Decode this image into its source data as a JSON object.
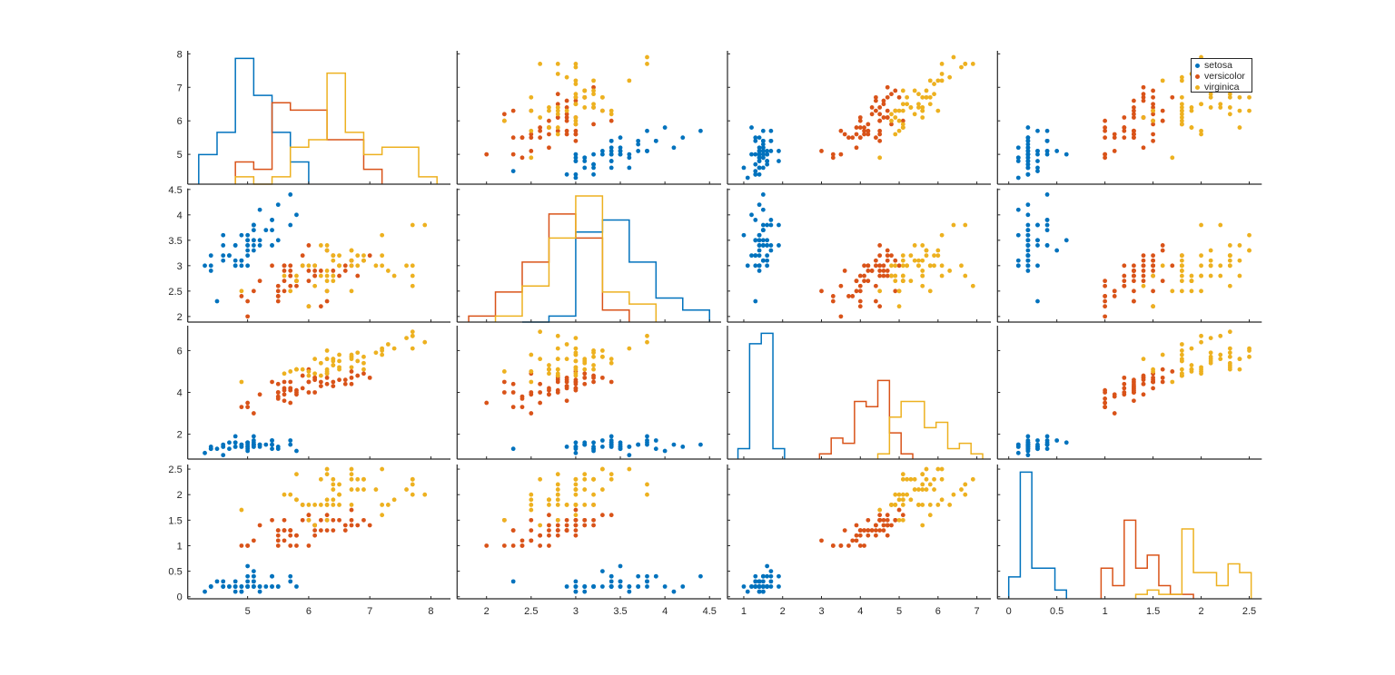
{
  "chart_data": {
    "type": "scatter",
    "layout": "scatter-plot-matrix 4x4 with per-group histograms on diagonal",
    "grid": false,
    "legend": {
      "placement": "top-right of last top-row panel",
      "entries": [
        {
          "name": "setosa",
          "color": "#0072BD"
        },
        {
          "name": "versicolor",
          "color": "#D95319"
        },
        {
          "name": "virginica",
          "color": "#EDB120"
        }
      ]
    },
    "variables": [
      {
        "lim_x": [
          4.02,
          8.32
        ],
        "lim_y": [
          4.11,
          8.09
        ],
        "ticks": [
          5,
          6,
          7,
          8
        ],
        "tick_labels": [
          "5",
          "6",
          "7",
          "8"
        ]
      },
      {
        "lim_x": [
          1.67,
          4.63
        ],
        "lim_y": [
          1.89,
          4.52
        ],
        "ticks": [
          2,
          2.5,
          3,
          3.5,
          4,
          4.5
        ],
        "tick_labels": [
          "2",
          "2.5",
          "3",
          "3.5",
          "4",
          "4.5"
        ]
      },
      {
        "lim_x": [
          0.58,
          7.36
        ],
        "lim_y": [
          0.81,
          7.19
        ],
        "ticks_x": [
          1,
          2,
          3,
          4,
          5,
          6,
          7
        ],
        "tick_labels_x": [
          "1",
          "2",
          "3",
          "4",
          "5",
          "6",
          "7"
        ],
        "ticks": [
          2,
          4,
          6
        ],
        "tick_labels": [
          "2",
          "4",
          "6"
        ]
      },
      {
        "lim_x": [
          -0.117,
          2.63
        ],
        "lim_y": [
          -0.04,
          2.59
        ],
        "ticks": [
          0,
          0.5,
          1,
          1.5,
          2,
          2.5
        ],
        "tick_labels": [
          "0",
          "0.5",
          "1",
          "1.5",
          "2",
          "2.5"
        ]
      }
    ],
    "groups": [
      {
        "name": "setosa",
        "points": [
          [
            5.1,
            3.5,
            1.4,
            0.2
          ],
          [
            4.9,
            3.0,
            1.4,
            0.2
          ],
          [
            4.7,
            3.2,
            1.3,
            0.2
          ],
          [
            4.6,
            3.1,
            1.5,
            0.2
          ],
          [
            5.0,
            3.6,
            1.4,
            0.2
          ],
          [
            5.4,
            3.9,
            1.7,
            0.4
          ],
          [
            4.6,
            3.4,
            1.4,
            0.3
          ],
          [
            5.0,
            3.4,
            1.5,
            0.2
          ],
          [
            4.4,
            2.9,
            1.4,
            0.2
          ],
          [
            4.9,
            3.1,
            1.5,
            0.1
          ],
          [
            5.4,
            3.7,
            1.5,
            0.2
          ],
          [
            4.8,
            3.4,
            1.6,
            0.2
          ],
          [
            4.8,
            3.0,
            1.4,
            0.1
          ],
          [
            4.3,
            3.0,
            1.1,
            0.1
          ],
          [
            5.8,
            4.0,
            1.2,
            0.2
          ],
          [
            5.7,
            4.4,
            1.5,
            0.4
          ],
          [
            5.4,
            3.9,
            1.3,
            0.4
          ],
          [
            5.1,
            3.5,
            1.4,
            0.3
          ],
          [
            5.7,
            3.8,
            1.7,
            0.3
          ],
          [
            5.1,
            3.8,
            1.5,
            0.3
          ],
          [
            5.4,
            3.4,
            1.7,
            0.2
          ],
          [
            5.1,
            3.7,
            1.5,
            0.4
          ],
          [
            4.6,
            3.6,
            1.0,
            0.2
          ],
          [
            5.1,
            3.3,
            1.7,
            0.5
          ],
          [
            4.8,
            3.4,
            1.9,
            0.2
          ],
          [
            5.0,
            3.0,
            1.6,
            0.2
          ],
          [
            5.0,
            3.4,
            1.6,
            0.4
          ],
          [
            5.2,
            3.5,
            1.5,
            0.2
          ],
          [
            5.2,
            3.4,
            1.4,
            0.2
          ],
          [
            4.7,
            3.2,
            1.6,
            0.2
          ],
          [
            4.8,
            3.1,
            1.6,
            0.2
          ],
          [
            5.4,
            3.4,
            1.5,
            0.4
          ],
          [
            5.2,
            4.1,
            1.5,
            0.1
          ],
          [
            5.5,
            4.2,
            1.4,
            0.2
          ],
          [
            4.9,
            3.1,
            1.5,
            0.2
          ],
          [
            5.0,
            3.2,
            1.2,
            0.2
          ],
          [
            5.5,
            3.5,
            1.3,
            0.2
          ],
          [
            4.9,
            3.6,
            1.4,
            0.1
          ],
          [
            4.4,
            3.0,
            1.3,
            0.2
          ],
          [
            5.1,
            3.4,
            1.5,
            0.2
          ],
          [
            5.0,
            3.5,
            1.3,
            0.3
          ],
          [
            4.5,
            2.3,
            1.3,
            0.3
          ],
          [
            4.4,
            3.2,
            1.3,
            0.2
          ],
          [
            5.0,
            3.5,
            1.6,
            0.6
          ],
          [
            5.1,
            3.8,
            1.9,
            0.4
          ],
          [
            4.8,
            3.0,
            1.4,
            0.3
          ],
          [
            5.1,
            3.8,
            1.6,
            0.2
          ],
          [
            4.6,
            3.2,
            1.4,
            0.2
          ],
          [
            5.3,
            3.7,
            1.5,
            0.2
          ],
          [
            5.0,
            3.3,
            1.4,
            0.2
          ]
        ],
        "histograms": [
          {
            "start": 4.2,
            "width": 0.3,
            "counts": [
              4,
              7,
              17,
              12,
              7,
              3
            ]
          },
          {
            "start": 2.4,
            "width": 0.3,
            "counts": [
              0,
              1,
              15,
              17,
              10,
              4,
              2
            ]
          },
          {
            "start": 0.85,
            "width": 0.3,
            "counts": [
              2,
              22,
              24,
              2
            ]
          },
          {
            "start": 0,
            "width": 0.12,
            "counts": [
              5,
              29,
              7,
              7,
              2
            ]
          }
        ]
      },
      {
        "name": "versicolor",
        "points": [
          [
            7.0,
            3.2,
            4.7,
            1.4
          ],
          [
            6.4,
            3.2,
            4.5,
            1.5
          ],
          [
            6.9,
            3.1,
            4.9,
            1.5
          ],
          [
            5.5,
            2.3,
            4.0,
            1.3
          ],
          [
            6.5,
            2.8,
            4.6,
            1.5
          ],
          [
            5.7,
            2.8,
            4.5,
            1.3
          ],
          [
            6.3,
            3.3,
            4.7,
            1.6
          ],
          [
            4.9,
            2.4,
            3.3,
            1.0
          ],
          [
            6.6,
            2.9,
            4.6,
            1.3
          ],
          [
            5.2,
            2.7,
            3.9,
            1.4
          ],
          [
            5.0,
            2.0,
            3.5,
            1.0
          ],
          [
            5.9,
            3.0,
            4.2,
            1.5
          ],
          [
            6.0,
            2.2,
            4.0,
            1.0
          ],
          [
            6.1,
            2.9,
            4.7,
            1.4
          ],
          [
            5.6,
            2.9,
            3.6,
            1.3
          ],
          [
            6.7,
            3.1,
            4.4,
            1.4
          ],
          [
            5.6,
            3.0,
            4.5,
            1.5
          ],
          [
            5.8,
            2.7,
            4.1,
            1.0
          ],
          [
            6.2,
            2.2,
            4.5,
            1.5
          ],
          [
            5.6,
            2.5,
            3.9,
            1.1
          ],
          [
            5.9,
            3.2,
            4.8,
            1.8
          ],
          [
            6.1,
            2.8,
            4.0,
            1.3
          ],
          [
            6.3,
            2.5,
            4.9,
            1.5
          ],
          [
            6.1,
            2.8,
            4.7,
            1.2
          ],
          [
            6.4,
            2.9,
            4.3,
            1.3
          ],
          [
            6.6,
            3.0,
            4.4,
            1.4
          ],
          [
            6.8,
            2.8,
            4.8,
            1.4
          ],
          [
            6.7,
            3.0,
            5.0,
            1.7
          ],
          [
            6.0,
            2.9,
            4.5,
            1.5
          ],
          [
            5.7,
            2.6,
            3.5,
            1.0
          ],
          [
            5.5,
            2.4,
            3.8,
            1.1
          ],
          [
            5.5,
            2.4,
            3.7,
            1.0
          ],
          [
            5.8,
            2.7,
            3.9,
            1.2
          ],
          [
            6.0,
            2.7,
            5.1,
            1.6
          ],
          [
            5.4,
            3.0,
            4.5,
            1.5
          ],
          [
            6.0,
            3.4,
            4.5,
            1.6
          ],
          [
            6.7,
            3.1,
            4.7,
            1.5
          ],
          [
            6.3,
            2.3,
            4.4,
            1.3
          ],
          [
            5.6,
            3.0,
            4.1,
            1.3
          ],
          [
            5.5,
            2.5,
            4.0,
            1.3
          ],
          [
            5.5,
            2.6,
            4.4,
            1.2
          ],
          [
            6.1,
            3.0,
            4.6,
            1.4
          ],
          [
            5.8,
            2.6,
            4.0,
            1.2
          ],
          [
            5.0,
            2.3,
            3.3,
            1.0
          ],
          [
            5.6,
            2.7,
            4.2,
            1.3
          ],
          [
            5.7,
            3.0,
            4.2,
            1.2
          ],
          [
            5.7,
            2.9,
            4.2,
            1.3
          ],
          [
            6.2,
            2.9,
            4.3,
            1.3
          ],
          [
            5.1,
            2.5,
            3.0,
            1.1
          ],
          [
            5.7,
            2.8,
            4.1,
            1.3
          ]
        ],
        "histograms": [
          {
            "start": 4.8,
            "width": 0.3,
            "counts": [
              3,
              2,
              11,
              10,
              10,
              6,
              6,
              2
            ]
          },
          {
            "start": 1.8,
            "width": 0.3,
            "counts": [
              1,
              5,
              10,
              18,
              14,
              2
            ]
          },
          {
            "start": 2.95,
            "width": 0.3,
            "counts": [
              1,
              4,
              3,
              11,
              10,
              15,
              5,
              1
            ]
          },
          {
            "start": 0.96,
            "width": 0.12,
            "counts": [
              7,
              3,
              18,
              7,
              10,
              3,
              1,
              1
            ]
          }
        ]
      },
      {
        "name": "virginica",
        "points": [
          [
            6.3,
            3.3,
            6.0,
            2.5
          ],
          [
            5.8,
            2.7,
            5.1,
            1.9
          ],
          [
            7.1,
            3.0,
            5.9,
            2.1
          ],
          [
            6.3,
            2.9,
            5.6,
            1.8
          ],
          [
            6.5,
            3.0,
            5.8,
            2.2
          ],
          [
            7.6,
            3.0,
            6.6,
            2.1
          ],
          [
            4.9,
            2.5,
            4.5,
            1.7
          ],
          [
            7.3,
            2.9,
            6.3,
            1.8
          ],
          [
            6.7,
            2.5,
            5.8,
            1.8
          ],
          [
            7.2,
            3.6,
            6.1,
            2.5
          ],
          [
            6.5,
            3.2,
            5.1,
            2.0
          ],
          [
            6.4,
            2.7,
            5.3,
            1.9
          ],
          [
            6.8,
            3.0,
            5.5,
            2.1
          ],
          [
            5.7,
            2.5,
            5.0,
            2.0
          ],
          [
            5.8,
            2.8,
            5.1,
            2.4
          ],
          [
            6.4,
            3.2,
            5.3,
            2.3
          ],
          [
            6.5,
            3.0,
            5.5,
            1.8
          ],
          [
            7.7,
            3.8,
            6.7,
            2.2
          ],
          [
            7.7,
            2.6,
            6.9,
            2.3
          ],
          [
            6.0,
            2.2,
            5.0,
            1.5
          ],
          [
            6.9,
            3.2,
            5.7,
            2.3
          ],
          [
            5.6,
            2.8,
            4.9,
            2.0
          ],
          [
            7.7,
            2.8,
            6.7,
            2.0
          ],
          [
            6.3,
            2.7,
            4.9,
            1.8
          ],
          [
            6.7,
            3.3,
            5.7,
            2.1
          ],
          [
            7.2,
            3.2,
            6.0,
            1.8
          ],
          [
            6.2,
            2.8,
            4.8,
            1.8
          ],
          [
            6.1,
            3.0,
            4.9,
            1.8
          ],
          [
            6.4,
            2.8,
            5.6,
            2.1
          ],
          [
            7.2,
            3.0,
            5.8,
            1.6
          ],
          [
            7.4,
            2.8,
            6.1,
            1.9
          ],
          [
            7.9,
            3.8,
            6.4,
            2.0
          ],
          [
            6.4,
            2.8,
            5.6,
            2.2
          ],
          [
            6.3,
            2.8,
            5.1,
            1.5
          ],
          [
            6.1,
            2.6,
            5.6,
            1.4
          ],
          [
            7.7,
            3.0,
            6.1,
            2.3
          ],
          [
            6.3,
            3.4,
            5.6,
            2.4
          ],
          [
            6.4,
            3.1,
            5.5,
            1.8
          ],
          [
            6.0,
            3.0,
            4.8,
            1.8
          ],
          [
            6.9,
            3.1,
            5.4,
            2.1
          ],
          [
            6.7,
            3.1,
            5.6,
            2.4
          ],
          [
            6.9,
            3.1,
            5.1,
            2.3
          ],
          [
            5.8,
            2.7,
            5.1,
            1.9
          ],
          [
            6.8,
            3.2,
            5.9,
            2.3
          ],
          [
            6.7,
            3.3,
            5.7,
            2.5
          ],
          [
            6.7,
            3.0,
            5.2,
            2.3
          ],
          [
            6.3,
            2.5,
            5.0,
            1.9
          ],
          [
            6.5,
            3.0,
            5.2,
            2.0
          ],
          [
            6.2,
            3.4,
            5.4,
            2.3
          ],
          [
            5.9,
            3.0,
            5.1,
            1.8
          ]
        ],
        "histograms": [
          {
            "start": 4.8,
            "width": 0.3,
            "counts": [
              1,
              0,
              1,
              5,
              6,
              15,
              7,
              4,
              5,
              5,
              1
            ]
          },
          {
            "start": 2.1,
            "width": 0.3,
            "counts": [
              1,
              6,
              14,
              21,
              5,
              3
            ]
          },
          {
            "start": 4.45,
            "width": 0.3,
            "counts": [
              1,
              8,
              11,
              11,
              6,
              7,
              2,
              3,
              1
            ]
          },
          {
            "start": 1.32,
            "width": 0.12,
            "counts": [
              1,
              2,
              1,
              1,
              16,
              6,
              6,
              3,
              8,
              6
            ]
          }
        ]
      }
    ]
  }
}
